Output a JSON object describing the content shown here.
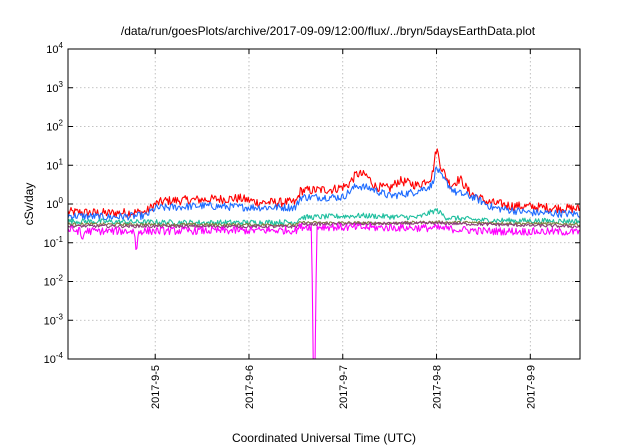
{
  "chart_data": {
    "type": "line",
    "title": "/data/run/goesPlots/archive/2017-09-09/12:00/flux/../bryn/5daysEarthData.plot",
    "xlabel": "Coordinated Universal Time (UTC)",
    "ylabel": "cSv/day",
    "yscale": "log",
    "ylim": [
      0.0001,
      10000
    ],
    "xlim": [
      4.07,
      9.53
    ],
    "grid": true,
    "xticks": [
      {
        "value": 5,
        "label": "2017-9-5"
      },
      {
        "value": 6,
        "label": "2017-9-6"
      },
      {
        "value": 7,
        "label": "2017-9-7"
      },
      {
        "value": 8,
        "label": "2017-9-8"
      },
      {
        "value": 9,
        "label": "2017-9-9"
      }
    ],
    "yticks": [
      {
        "value": 0.0001,
        "base": "10",
        "exp": "-4"
      },
      {
        "value": 0.001,
        "base": "10",
        "exp": "-3"
      },
      {
        "value": 0.01,
        "base": "10",
        "exp": "-2"
      },
      {
        "value": 0.1,
        "base": "10",
        "exp": "-1"
      },
      {
        "value": 1,
        "base": "10",
        "exp": "0"
      },
      {
        "value": 10,
        "base": "10",
        "exp": "1"
      },
      {
        "value": 100,
        "base": "10",
        "exp": "2"
      },
      {
        "value": 1000,
        "base": "10",
        "exp": "3"
      },
      {
        "value": 10000,
        "base": "10",
        "exp": "4"
      }
    ],
    "series": [
      {
        "color": "#ff0000",
        "noise": 0.12,
        "points": [
          [
            4.07,
            0.62
          ],
          [
            4.5,
            0.58
          ],
          [
            4.9,
            0.62
          ],
          [
            5.0,
            1.0
          ],
          [
            5.1,
            1.2
          ],
          [
            5.5,
            1.3
          ],
          [
            5.9,
            1.4
          ],
          [
            6.1,
            1.1
          ],
          [
            6.5,
            1.1
          ],
          [
            6.55,
            2.2
          ],
          [
            6.9,
            2.4
          ],
          [
            7.05,
            3.0
          ],
          [
            7.15,
            6.0
          ],
          [
            7.25,
            5.5
          ],
          [
            7.35,
            2.8
          ],
          [
            7.5,
            2.5
          ],
          [
            7.6,
            4.0
          ],
          [
            7.7,
            3.5
          ],
          [
            7.8,
            3.0
          ],
          [
            7.95,
            5.0
          ],
          [
            8.0,
            28
          ],
          [
            8.05,
            9.0
          ],
          [
            8.15,
            3.0
          ],
          [
            8.25,
            4.5
          ],
          [
            8.35,
            2.0
          ],
          [
            8.55,
            1.1
          ],
          [
            8.8,
            0.9
          ],
          [
            9.2,
            0.8
          ],
          [
            9.53,
            0.75
          ]
        ]
      },
      {
        "color": "#1f6cff",
        "noise": 0.1,
        "points": [
          [
            4.07,
            0.5
          ],
          [
            4.5,
            0.46
          ],
          [
            4.9,
            0.5
          ],
          [
            5.0,
            0.78
          ],
          [
            5.5,
            0.9
          ],
          [
            6.0,
            0.82
          ],
          [
            6.5,
            0.82
          ],
          [
            6.55,
            1.5
          ],
          [
            7.0,
            1.5
          ],
          [
            7.15,
            3.0
          ],
          [
            7.3,
            2.5
          ],
          [
            7.5,
            1.6
          ],
          [
            7.75,
            2.0
          ],
          [
            7.95,
            3.0
          ],
          [
            8.0,
            9.0
          ],
          [
            8.05,
            5.0
          ],
          [
            8.2,
            2.0
          ],
          [
            8.4,
            1.5
          ],
          [
            8.6,
            0.8
          ],
          [
            9.0,
            0.6
          ],
          [
            9.53,
            0.55
          ]
        ]
      },
      {
        "color": "#1fbf9f",
        "noise": 0.07,
        "points": [
          [
            4.07,
            0.36
          ],
          [
            4.9,
            0.34
          ],
          [
            5.5,
            0.33
          ],
          [
            6.5,
            0.34
          ],
          [
            6.55,
            0.45
          ],
          [
            7.2,
            0.5
          ],
          [
            7.8,
            0.45
          ],
          [
            8.0,
            0.7
          ],
          [
            8.1,
            0.45
          ],
          [
            8.5,
            0.38
          ],
          [
            9.53,
            0.36
          ]
        ]
      },
      {
        "color": "#808040",
        "noise": 0.04,
        "points": [
          [
            4.07,
            0.3
          ],
          [
            6.5,
            0.29
          ],
          [
            6.55,
            0.33
          ],
          [
            7.5,
            0.32
          ],
          [
            8.0,
            0.34
          ],
          [
            9.53,
            0.3
          ]
        ]
      },
      {
        "color": "#8a3c78",
        "noise": 0.04,
        "points": [
          [
            4.07,
            0.27
          ],
          [
            6.5,
            0.26
          ],
          [
            6.55,
            0.3
          ],
          [
            8.0,
            0.32
          ],
          [
            9.53,
            0.26
          ]
        ]
      },
      {
        "color": "#ff00ff",
        "noise": 0.1,
        "points": [
          [
            4.07,
            0.22
          ],
          [
            4.2,
            0.2
          ],
          [
            4.22,
            0.11
          ],
          [
            4.25,
            0.2
          ],
          [
            4.78,
            0.2
          ],
          [
            4.8,
            0.045
          ],
          [
            4.82,
            0.2
          ],
          [
            6.5,
            0.21
          ],
          [
            6.55,
            0.26
          ],
          [
            6.67,
            0.26
          ],
          [
            6.68,
            0.0001
          ],
          [
            6.71,
            0.0001
          ],
          [
            6.72,
            0.26
          ],
          [
            7.0,
            0.25
          ],
          [
            8.0,
            0.24
          ],
          [
            8.5,
            0.2
          ],
          [
            9.53,
            0.19
          ]
        ]
      }
    ]
  }
}
